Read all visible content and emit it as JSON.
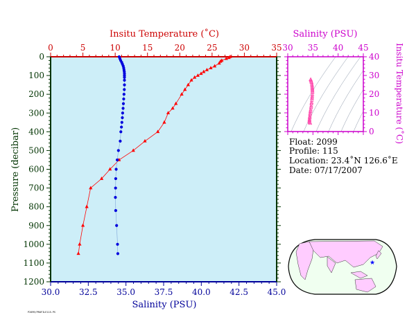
{
  "chart_data": [
    {
      "type": "scatter",
      "title": "",
      "ylabel": "Pressure (decibar)",
      "y_ticks": [
        "0",
        "100",
        "200",
        "300",
        "400",
        "500",
        "600",
        "700",
        "800",
        "900",
        "1000",
        "1100",
        "1200"
      ],
      "ylim": [
        0,
        1200
      ],
      "y_reversed": true,
      "top_axis": {
        "label": "Insitu Temperature (˚C)",
        "ticks": [
          "0",
          "5",
          "10",
          "15",
          "20",
          "25",
          "30",
          "35"
        ],
        "range": [
          0,
          35
        ],
        "color": "#cc0000"
      },
      "bottom_axis": {
        "label": "Salinity (PSU)",
        "ticks": [
          "30.0",
          "32.5",
          "35.0",
          "37.5",
          "40.0",
          "42.5",
          "45.0"
        ],
        "range": [
          30,
          45
        ],
        "color": "#000099"
      },
      "background": "#cdeef8",
      "series": [
        {
          "axis": "temperature",
          "marker": "triangle",
          "color": "#ff0000",
          "points": [
            [
              27.8,
              0
            ],
            [
              27.6,
              5
            ],
            [
              27.2,
              10
            ],
            [
              26.5,
              20
            ],
            [
              26.3,
              25
            ],
            [
              26.1,
              35
            ],
            [
              25.4,
              50
            ],
            [
              24.8,
              60
            ],
            [
              24.2,
              70
            ],
            [
              23.7,
              80
            ],
            [
              23.3,
              90
            ],
            [
              22.8,
              100
            ],
            [
              22.3,
              110
            ],
            [
              21.8,
              125
            ],
            [
              21.3,
              150
            ],
            [
              20.8,
              175
            ],
            [
              20.3,
              200
            ],
            [
              19.4,
              250
            ],
            [
              18.9,
              275
            ],
            [
              18.2,
              300
            ],
            [
              17.6,
              350
            ],
            [
              16.6,
              400
            ],
            [
              14.6,
              450
            ],
            [
              12.8,
              500
            ],
            [
              10.6,
              550
            ],
            [
              9.2,
              600
            ],
            [
              7.9,
              650
            ],
            [
              6.2,
              700
            ],
            [
              5.6,
              800
            ],
            [
              5.0,
              900
            ],
            [
              4.5,
              1000
            ],
            [
              4.3,
              1050
            ]
          ]
        },
        {
          "axis": "salinity",
          "marker": "circle",
          "color": "#0000dd",
          "points": [
            [
              34.55,
              0
            ],
            [
              34.6,
              10
            ],
            [
              34.65,
              20
            ],
            [
              34.72,
              30
            ],
            [
              34.77,
              40
            ],
            [
              34.82,
              50
            ],
            [
              34.85,
              60
            ],
            [
              34.87,
              70
            ],
            [
              34.89,
              80
            ],
            [
              34.9,
              90
            ],
            [
              34.9,
              100
            ],
            [
              34.9,
              110
            ],
            [
              34.9,
              125
            ],
            [
              34.9,
              150
            ],
            [
              34.89,
              175
            ],
            [
              34.87,
              200
            ],
            [
              34.85,
              225
            ],
            [
              34.83,
              250
            ],
            [
              34.81,
              275
            ],
            [
              34.78,
              300
            ],
            [
              34.76,
              325
            ],
            [
              34.73,
              350
            ],
            [
              34.7,
              375
            ],
            [
              34.66,
              400
            ],
            [
              34.62,
              450
            ],
            [
              34.5,
              500
            ],
            [
              34.42,
              550
            ],
            [
              34.35,
              600
            ],
            [
              34.32,
              650
            ],
            [
              34.31,
              700
            ],
            [
              34.3,
              750
            ],
            [
              34.32,
              820
            ],
            [
              34.38,
              900
            ],
            [
              34.44,
              1000
            ],
            [
              34.46,
              1050
            ]
          ]
        }
      ]
    },
    {
      "type": "scatter",
      "title": "",
      "xlabel": "Salinity (PSU)",
      "ylabel": "Insitu Temperature (˚C)",
      "x_ticks": [
        "30",
        "35",
        "40",
        "45"
      ],
      "y_ticks": [
        "0",
        "10",
        "20",
        "30",
        "40"
      ],
      "xlim": [
        30,
        45
      ],
      "ylim": [
        0,
        40
      ],
      "color": "#cc00cc",
      "density_contours": true,
      "series": [
        {
          "marker": "triangle",
          "color": "#ff44aa",
          "points": [
            [
              34.55,
              27.8
            ],
            [
              34.6,
              27.4
            ],
            [
              34.65,
              26.8
            ],
            [
              34.72,
              26.3
            ],
            [
              34.77,
              25.4
            ],
            [
              34.82,
              24.6
            ],
            [
              34.85,
              23.8
            ],
            [
              34.87,
              23.0
            ],
            [
              34.89,
              22.3
            ],
            [
              34.9,
              21.6
            ],
            [
              34.9,
              20.8
            ],
            [
              34.88,
              19.6
            ],
            [
              34.85,
              18.6
            ],
            [
              34.82,
              17.8
            ],
            [
              34.78,
              16.8
            ],
            [
              34.74,
              15.6
            ],
            [
              34.7,
              14.8
            ],
            [
              34.66,
              13.6
            ],
            [
              34.62,
              12.8
            ],
            [
              34.55,
              11.6
            ],
            [
              34.5,
              10.8
            ],
            [
              34.45,
              9.8
            ],
            [
              34.42,
              9.0
            ],
            [
              34.38,
              8.0
            ],
            [
              34.35,
              7.3
            ],
            [
              34.32,
              6.5
            ],
            [
              34.31,
              5.9
            ],
            [
              34.32,
              5.3
            ],
            [
              34.38,
              4.8
            ],
            [
              34.44,
              4.4
            ]
          ]
        }
      ]
    }
  ],
  "float_info": {
    "float": "Float:  2099",
    "profile": "Profile:  115",
    "location": "Location:  23.4˚N  126.6˚E",
    "date": "Date:  07/17/2007"
  },
  "map": {
    "ocean_color": "#f0fff0",
    "land_color": "#ffccff",
    "marker_color": "#0000ff",
    "marker_symbol": "★"
  },
  "footer_stamp": "P2099/PROFILE115.PS"
}
